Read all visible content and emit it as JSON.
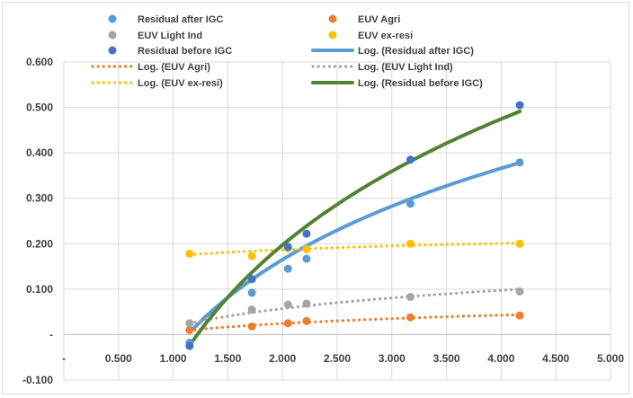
{
  "chart_data": {
    "type": "scatter",
    "xlim": [
      0,
      5
    ],
    "ylim": [
      -0.1,
      0.6
    ],
    "x_ticks": [
      "-",
      "0.500",
      "1.000",
      "1.500",
      "2.000",
      "2.500",
      "3.000",
      "3.500",
      "4.000",
      "4.500",
      "5.000"
    ],
    "y_ticks": [
      "-0.100",
      "-",
      "0.100",
      "0.200",
      "0.300",
      "0.400",
      "0.500",
      "0.600"
    ],
    "grid": true,
    "legend_position": "top",
    "series": [
      {
        "name": "Residual after IGC",
        "kind": "points",
        "color": "#5b9bd5",
        "x": [
          1.15,
          1.72,
          2.05,
          2.22,
          3.17,
          4.17
        ],
        "y": [
          -0.018,
          0.092,
          0.145,
          0.167,
          0.288,
          0.379
        ]
      },
      {
        "name": "EUV Agri",
        "kind": "points",
        "color": "#ed7d31",
        "x": [
          1.15,
          1.72,
          2.05,
          2.22,
          3.17,
          4.17
        ],
        "y": [
          0.01,
          0.018,
          0.025,
          0.03,
          0.038,
          0.042
        ]
      },
      {
        "name": "EUV Light Ind",
        "kind": "points",
        "color": "#a5a5a5",
        "x": [
          1.15,
          1.72,
          2.05,
          2.22,
          3.17,
          4.17
        ],
        "y": [
          0.025,
          0.055,
          0.066,
          0.068,
          0.083,
          0.095
        ]
      },
      {
        "name": "EUV ex-resi",
        "kind": "points",
        "color": "#ffc000",
        "x": [
          1.15,
          1.72,
          2.05,
          2.22,
          3.17,
          4.17
        ],
        "y": [
          0.178,
          0.173,
          0.19,
          0.188,
          0.2,
          0.2
        ]
      },
      {
        "name": "Residual before IGC",
        "kind": "points",
        "color": "#4472c4",
        "x": [
          1.15,
          1.72,
          2.05,
          2.22,
          3.17,
          4.17
        ],
        "y": [
          -0.025,
          0.122,
          0.193,
          0.222,
          0.385,
          0.505
        ]
      },
      {
        "name": "Log. (Residual after IGC)",
        "kind": "log",
        "style": "solid",
        "color": "#5b9bd5",
        "a": -0.036,
        "b": 0.29,
        "x_range": [
          1.18,
          4.17
        ]
      },
      {
        "name": "Log. (EUV Agri)",
        "kind": "log",
        "style": "dotted",
        "color": "#ed7d31",
        "a": 0.006,
        "b": 0.0265,
        "x_range": [
          1.15,
          4.17
        ]
      },
      {
        "name": "Log. (EUV Light Ind)",
        "kind": "log",
        "style": "dotted",
        "color": "#a5a5a5",
        "a": 0.017,
        "b": 0.058,
        "x_range": [
          1.15,
          4.17
        ]
      },
      {
        "name": "Log. (EUV ex-resi)",
        "kind": "log",
        "style": "dotted",
        "color": "#ffc000",
        "a": 0.173,
        "b": 0.02,
        "x_range": [
          1.15,
          4.17
        ]
      },
      {
        "name": "Log. (Residual before IGC)",
        "kind": "log",
        "style": "solid",
        "color": "#548235",
        "a": -0.08,
        "b": 0.4,
        "x_range": [
          1.18,
          4.17
        ]
      }
    ]
  }
}
